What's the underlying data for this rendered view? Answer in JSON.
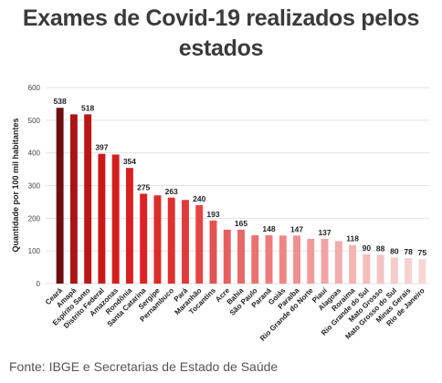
{
  "title_line1": "Exames de Covid-19 realizados pelos",
  "title_line2": "estados",
  "source": "Fonte: IBGE e Secretarias de Estado de Saúde",
  "chart_data": {
    "type": "bar",
    "title": "Exames de Covid-19 realizados pelos estados",
    "xlabel": "",
    "ylabel": "Quantidade por 100 mil habitantes",
    "ylim": [
      0,
      600
    ],
    "yticks": [
      0,
      100,
      200,
      300,
      400,
      500,
      600
    ],
    "grid": true,
    "categories": [
      "Ceará",
      "Amapá",
      "Espírito Santo",
      "Distrito Federal",
      "Amazonas",
      "Rondônia",
      "Santa Catarina",
      "Sergipe",
      "Pernambuco",
      "Pará",
      "Maranhão",
      "Tocantins",
      "Acre",
      "Bahia",
      "São Paulo",
      "Paraná",
      "Goiás",
      "Paraíba",
      "Rio Grande do Norte",
      "Piauí",
      "Alagoas",
      "Roraima",
      "Rio Grande do Sul",
      "Mato Grosso",
      "Mato Grosso do Sul",
      "Minas Gerais",
      "Rio de Janeiro"
    ],
    "values": [
      538,
      518,
      518,
      397,
      395,
      354,
      275,
      270,
      263,
      256,
      240,
      193,
      165,
      165,
      148,
      148,
      147,
      147,
      137,
      137,
      130,
      118,
      90,
      88,
      80,
      78,
      75
    ],
    "data_labels": [
      "538",
      "",
      "518",
      "397",
      "",
      "354",
      "275",
      "",
      "263",
      "",
      "240",
      "193",
      "",
      "165",
      "",
      "148",
      "",
      "147",
      "",
      "137",
      "",
      "118",
      "90",
      "88",
      "80",
      "78",
      "75"
    ],
    "bar_colors": [
      "#6d0f0f",
      "#ad1414",
      "#bb1616",
      "#c91a1a",
      "#d21e1e",
      "#d92020",
      "#dc2222",
      "#dd2a2a",
      "#e03030",
      "#e23a3a",
      "#e44646",
      "#e55252",
      "#e75e5e",
      "#e96868",
      "#eb7272",
      "#ec7c7c",
      "#ee8686",
      "#ef9090",
      "#f09a9a",
      "#f2a3a3",
      "#f3acac",
      "#f4b4b4",
      "#f5bcbc",
      "#f6c3c3",
      "#f7caca",
      "#f8d0d0",
      "#f9d6d6"
    ],
    "grid_color": "#e2e2e2",
    "text_color": "#222222"
  }
}
